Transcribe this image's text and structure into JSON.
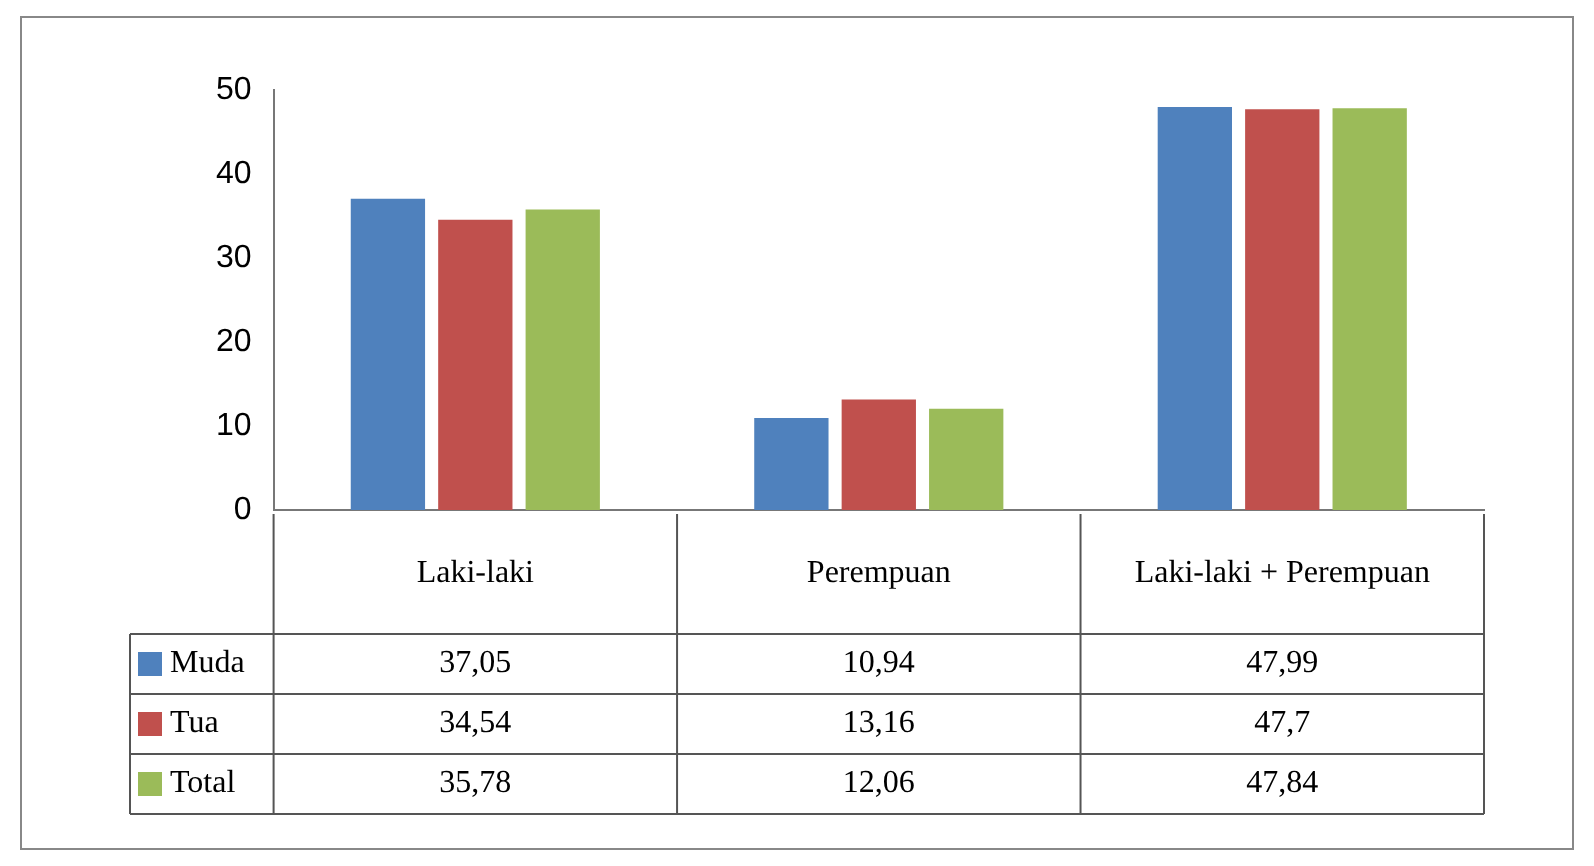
{
  "chart_data": {
    "type": "bar",
    "categories": [
      "Laki-laki",
      "Perempuan",
      "Laki-laki + Perempuan"
    ],
    "series": [
      {
        "name": "Muda",
        "color": "#4f81bd",
        "values": [
          37.05,
          10.94,
          47.99
        ],
        "value_labels": [
          "37,05",
          "10,94",
          "47,99"
        ]
      },
      {
        "name": "Tua",
        "color": "#c0504d",
        "values": [
          34.54,
          13.16,
          47.7
        ],
        "value_labels": [
          "34,54",
          "13,16",
          "47,7"
        ]
      },
      {
        "name": "Total",
        "color": "#9bbb59",
        "values": [
          35.78,
          12.06,
          47.84
        ],
        "value_labels": [
          "35,78",
          "12,06",
          "47,84"
        ]
      }
    ],
    "ylim": [
      0,
      50
    ],
    "yticks": [
      0,
      10,
      20,
      30,
      40,
      50
    ],
    "grid": false,
    "legend": "bottom left"
  }
}
